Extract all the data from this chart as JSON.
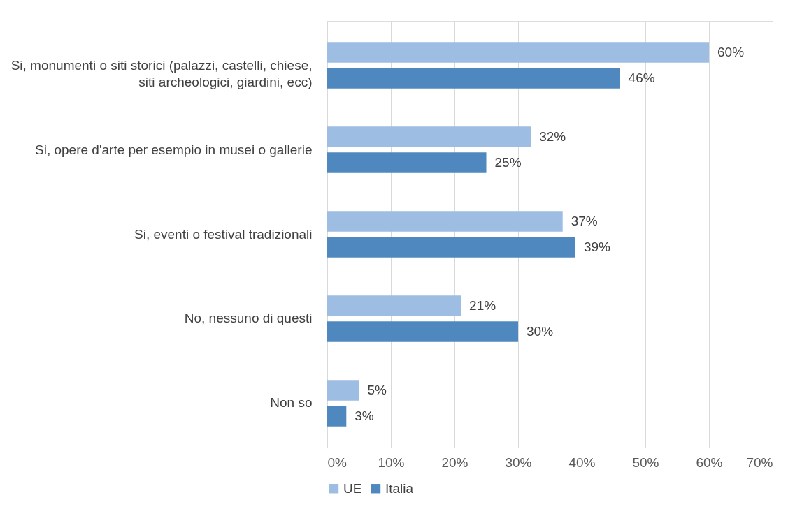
{
  "chart_data": {
    "type": "bar",
    "orientation": "horizontal",
    "categories": [
      "Si, monumenti o siti storici (palazzi, castelli, chiese,\nsiti archeologici, giardini, ecc)",
      "Si, opere d'arte per esempio in musei o gallerie",
      "Si, eventi o festival tradizionali",
      "No, nessuno di questi",
      "Non so"
    ],
    "series": [
      {
        "name": "UE",
        "color": "#9dbde3",
        "values": [
          60,
          32,
          37,
          21,
          5
        ],
        "value_labels": [
          "60%",
          "32%",
          "37%",
          "21%",
          "5%"
        ]
      },
      {
        "name": "Italia",
        "color": "#4f88be",
        "values": [
          46,
          25,
          39,
          30,
          3
        ],
        "value_labels": [
          "46%",
          "25%",
          "39%",
          "30%",
          "3%"
        ]
      }
    ],
    "xlim": [
      0,
      70
    ],
    "xticks": [
      {
        "value": 0,
        "label": "0%"
      },
      {
        "value": 10,
        "label": "10%"
      },
      {
        "value": 20,
        "label": "20%"
      },
      {
        "value": 30,
        "label": "30%"
      },
      {
        "value": 40,
        "label": "40%"
      },
      {
        "value": 50,
        "label": "50%"
      },
      {
        "value": 60,
        "label": "60%"
      },
      {
        "value": 70,
        "label": "70%"
      }
    ],
    "grid": "x",
    "legend": "bottom"
  }
}
